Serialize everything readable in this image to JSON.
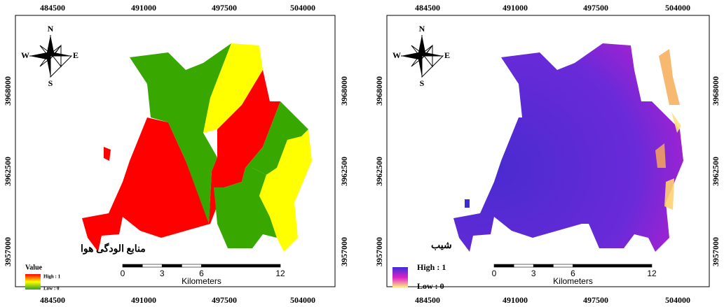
{
  "panels": [
    {
      "title": "منابع الودگی هوا",
      "x_labels": [
        "484500",
        "491000",
        "497500",
        "504000"
      ],
      "y_labels": [
        "3968000",
        "3962500",
        "3957000"
      ],
      "compass": {
        "n": "N",
        "s": "S",
        "w": "W",
        "e": "E"
      },
      "legend": {
        "title": "Value",
        "high": "High : 1",
        "low": "Low : 0"
      },
      "scale": {
        "ticks": [
          "0",
          "3",
          "6",
          "12"
        ],
        "unit": "Kilometers"
      }
    },
    {
      "title": "شیب",
      "x_labels": [
        "484500",
        "491000",
        "497500",
        "504000"
      ],
      "y_labels": [
        "3968000",
        "3962500",
        "3957000"
      ],
      "compass": {
        "n": "N",
        "s": "S",
        "w": "W",
        "e": "E"
      },
      "legend": {
        "high": "High : 1",
        "low": "Low : 0"
      },
      "scale": {
        "ticks": [
          "0",
          "3",
          "6",
          "12"
        ],
        "unit": "Kilometers"
      }
    }
  ]
}
